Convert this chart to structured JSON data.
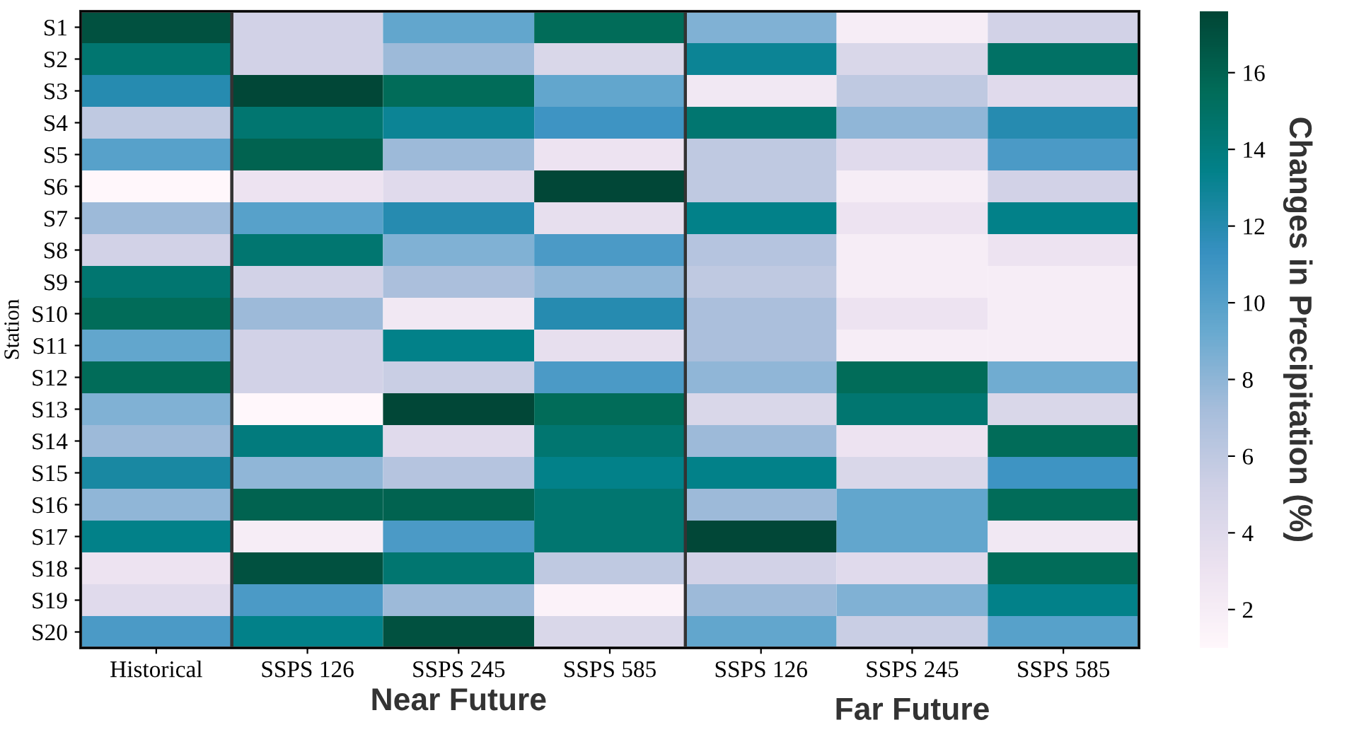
{
  "chart_data": {
    "type": "heatmap",
    "ylabel": "Station",
    "clabel": "Changes in Precipitation (%)",
    "categories": [
      "Historical",
      "SSPS 126",
      "SSPS 245",
      "SSPS 585",
      "SSPS 126",
      "SSPS 245",
      "SSPS 585"
    ],
    "y_categories": [
      "S1",
      "S2",
      "S3",
      "S4",
      "S5",
      "S6",
      "S7",
      "S8",
      "S9",
      "S10",
      "S11",
      "S12",
      "S13",
      "S14",
      "S15",
      "S16",
      "S17",
      "S18",
      "S19",
      "S20"
    ],
    "cells": [
      [
        17,
        5,
        9.5,
        15.5,
        8.5,
        2,
        5
      ],
      [
        14.5,
        5,
        7.5,
        4.5,
        13,
        4.5,
        15
      ],
      [
        12,
        17.5,
        15.5,
        9.5,
        2.5,
        6,
        4
      ],
      [
        6,
        14.5,
        13,
        11,
        14.5,
        8,
        12
      ],
      [
        10,
        16,
        7.5,
        3,
        6,
        4,
        10.5
      ],
      [
        1,
        3,
        4,
        17.5,
        6,
        2,
        5
      ],
      [
        7.5,
        10,
        12,
        3.5,
        13.5,
        3,
        13.5
      ],
      [
        5,
        14.5,
        8.5,
        10.5,
        6.5,
        2,
        3
      ],
      [
        14.5,
        5,
        7,
        8,
        6,
        2,
        2
      ],
      [
        15.5,
        7.5,
        2.5,
        12,
        7,
        3,
        2
      ],
      [
        9.5,
        5,
        13.5,
        3.5,
        7,
        2,
        2
      ],
      [
        15.5,
        5,
        5.5,
        10.5,
        8,
        15.5,
        9
      ],
      [
        8.5,
        1,
        17.5,
        15.5,
        4.5,
        14.5,
        4.5
      ],
      [
        7.5,
        14,
        4,
        14.5,
        7.5,
        3,
        15.5
      ],
      [
        12.5,
        8,
        6.5,
        13.5,
        13.5,
        4.5,
        11
      ],
      [
        8,
        16,
        16,
        14.5,
        7.5,
        9.5,
        15.5
      ],
      [
        13.5,
        2,
        10.5,
        14.5,
        17.5,
        9.5,
        2.5
      ],
      [
        3,
        17,
        14.5,
        6,
        5,
        4,
        15.5
      ],
      [
        4,
        10.5,
        7.5,
        1.5,
        7.5,
        8.5,
        13.5
      ],
      [
        10.5,
        13.5,
        17,
        4.5,
        9.5,
        5.5,
        10
      ]
    ],
    "clim": [
      1,
      17.6
    ],
    "cticks": [
      2,
      4,
      6,
      8,
      10,
      12,
      14,
      16
    ],
    "annotations": [
      "Near Future",
      "Far Future"
    ]
  }
}
